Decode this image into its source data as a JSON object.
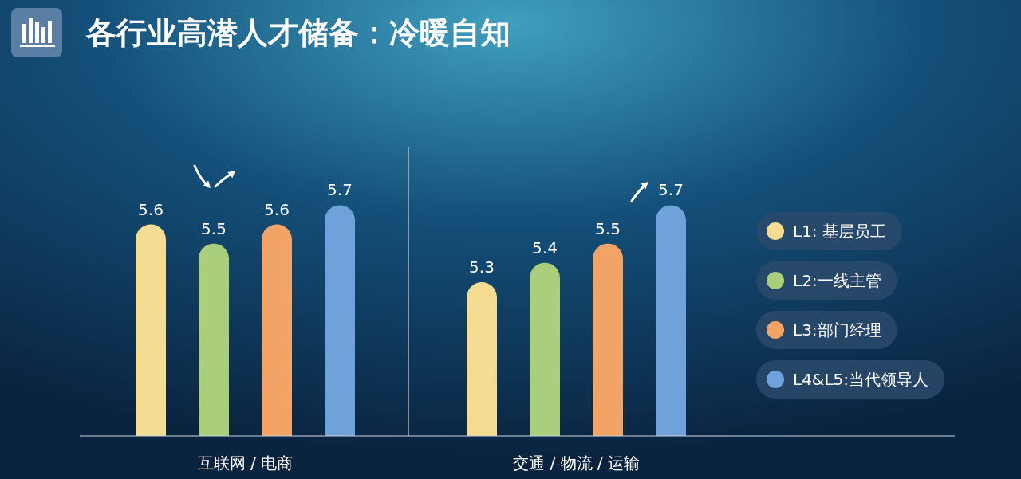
{
  "chart_data": {
    "type": "bar",
    "title": "各行业高潜人才储备：冷暖自知",
    "categories": [
      "互联网 / 电商",
      "交通 / 物流 / 运输"
    ],
    "series": [
      {
        "name": "L1: 基层员工",
        "color": "#f4dd92",
        "values": [
          5.6,
          5.3
        ]
      },
      {
        "name": "L2:一线主管",
        "color": "#a9cf7c",
        "values": [
          5.5,
          5.4
        ]
      },
      {
        "name": "L3:部门经理",
        "color": "#f2a466",
        "values": [
          5.6,
          5.5
        ]
      },
      {
        "name": "L4&L5:当代领导人",
        "color": "#6fa2da",
        "values": [
          5.7,
          5.7
        ]
      }
    ],
    "data_labels": true,
    "ylim": [
      4.5,
      6.0
    ],
    "legend": "right"
  }
}
